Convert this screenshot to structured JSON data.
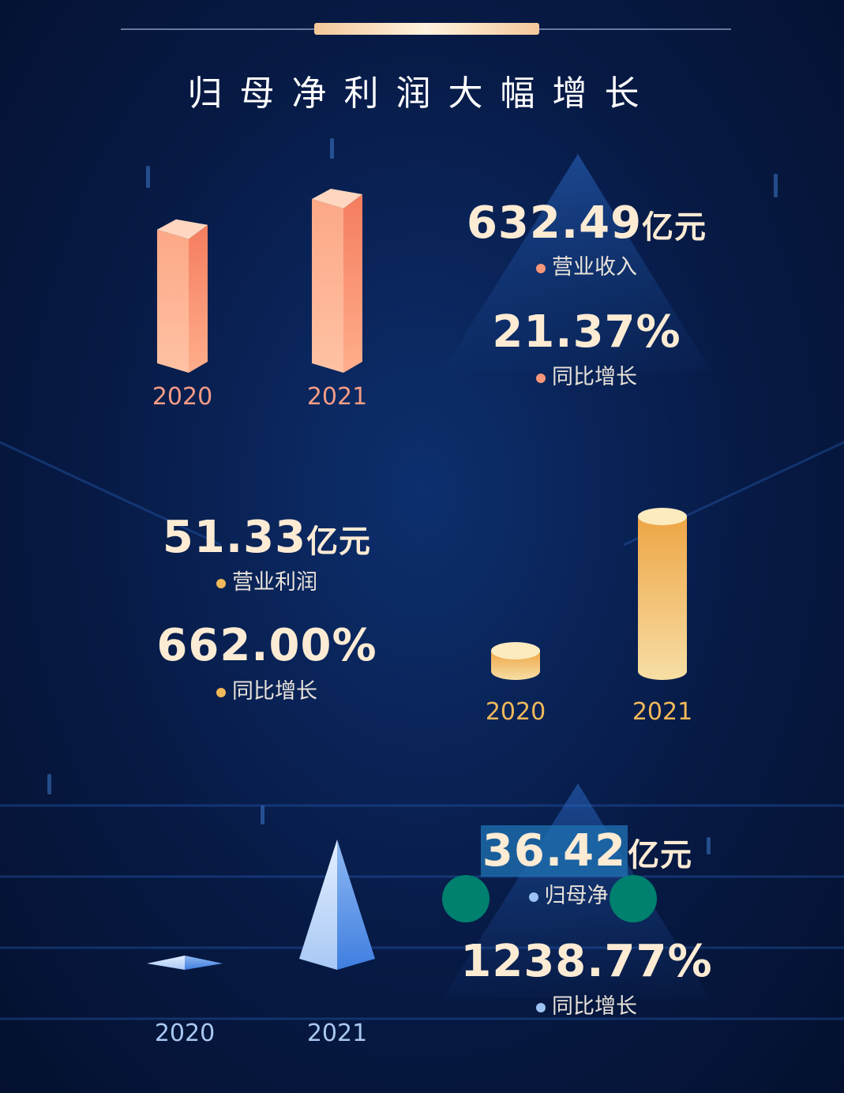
{
  "title": "归母净利润大幅增长",
  "colors": {
    "revenue": "#f9977a",
    "operating": "#f2b95a",
    "net": "#7fb0ef",
    "text": "#fdebd4"
  },
  "revenue": {
    "value": "632.49",
    "unit": "亿元",
    "label": "营业收入",
    "growth_value": "21.37%",
    "growth_label": "同比增长"
  },
  "operating_profit": {
    "value": "51.33",
    "unit": "亿元",
    "label": "营业利润",
    "growth_value": "662.00%",
    "growth_label": "同比增长"
  },
  "net_profit": {
    "value": "36.42",
    "unit": "亿元",
    "label": "归母净",
    "growth_value": "1238.77%",
    "growth_label": "同比增长"
  },
  "chart_data": [
    {
      "type": "bar",
      "categories": [
        "2020",
        "2021"
      ],
      "values": [
        521.14,
        632.49
      ]
    },
    {
      "type": "bar",
      "categories": [
        "2020",
        "2021"
      ],
      "values": [
        6.74,
        51.33
      ]
    },
    {
      "type": "bar",
      "categories": [
        "2020",
        "2021"
      ],
      "values": [
        2.72,
        36.42
      ]
    }
  ]
}
